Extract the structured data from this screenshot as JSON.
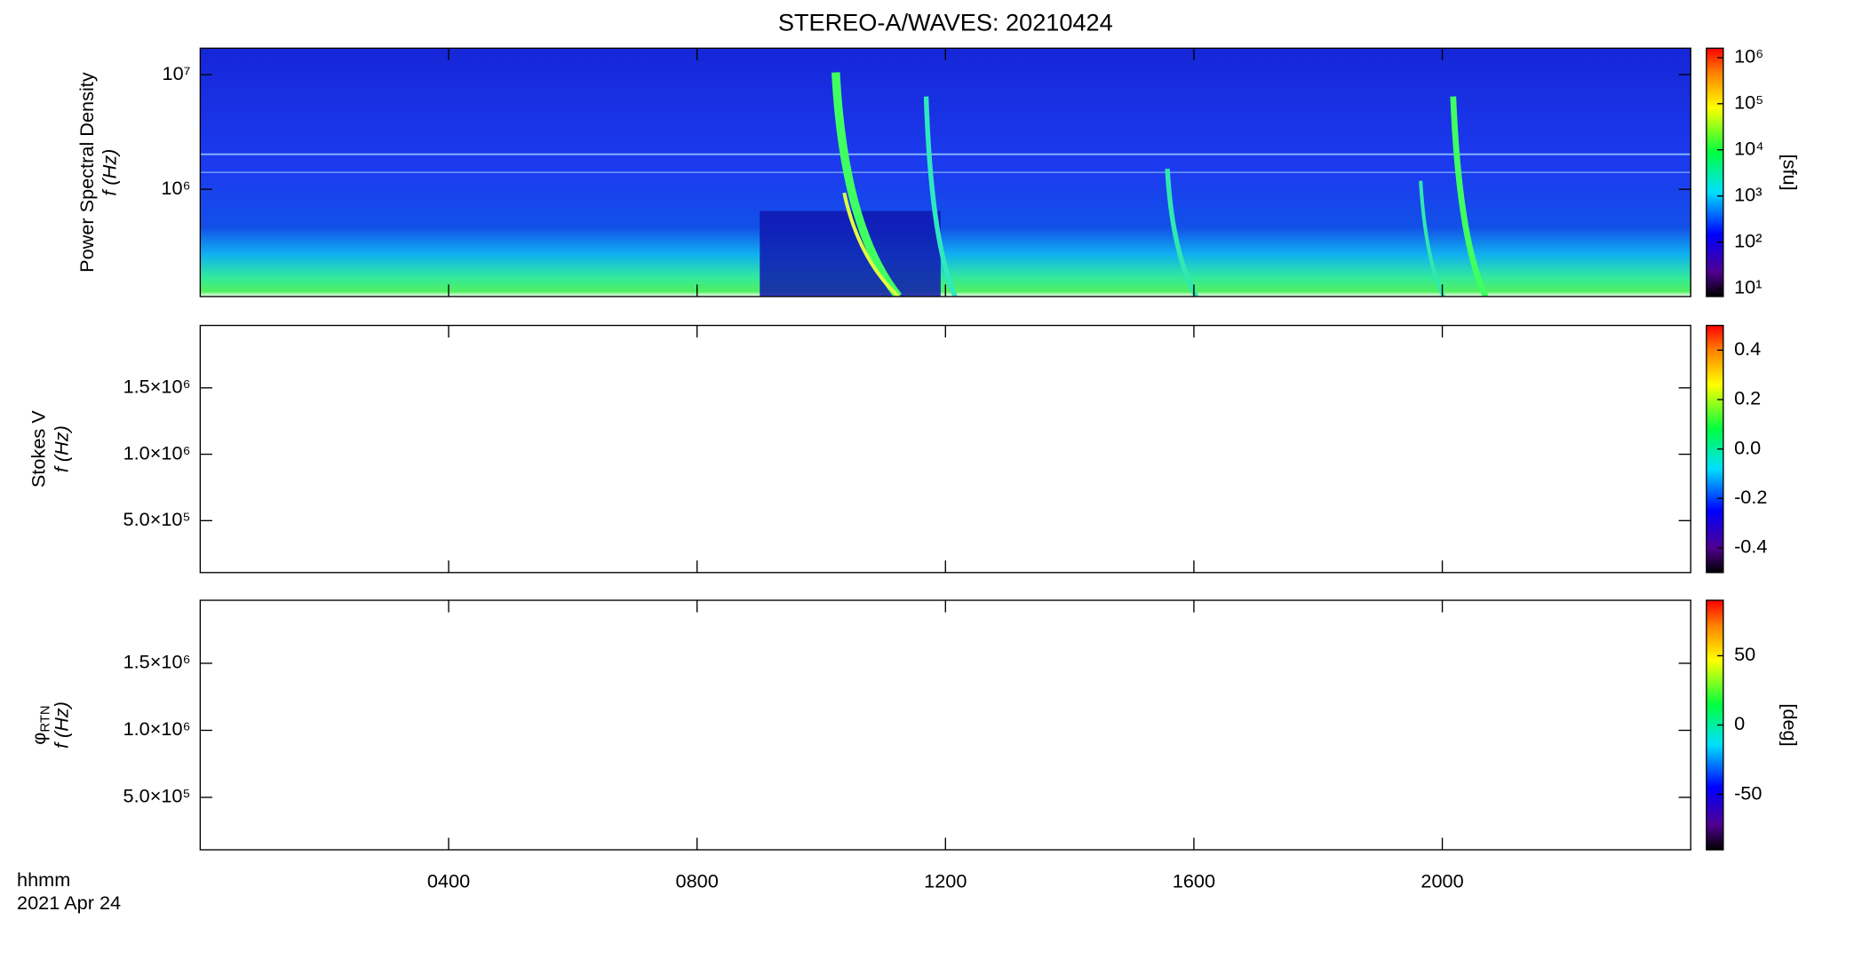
{
  "chart_data": [
    {
      "type": "spectrogram",
      "title": "STEREO-A/WAVES: 20210424",
      "ylabel": "Power Spectral Density",
      "ylabel2": "f (Hz)",
      "ylog": true,
      "ylim": [
        116000,
        17000000
      ],
      "yticks": [
        {
          "value": 1000000,
          "label": "10⁶"
        },
        {
          "value": 10000000,
          "label": "10⁷"
        }
      ],
      "zlog": true,
      "zlim": [
        6.6,
        1600000
      ],
      "zlabel": "[sfu]",
      "zticks": [
        {
          "value": 10,
          "label": "10¹"
        },
        {
          "value": 100,
          "label": "10²"
        },
        {
          "value": 1000,
          "label": "10³"
        },
        {
          "value": 10000,
          "label": "10⁴"
        },
        {
          "value": 100000,
          "label": "10⁵"
        },
        {
          "value": 1000000,
          "label": "10⁶"
        }
      ]
    },
    {
      "type": "spectrogram",
      "ylabel": "Stokes V",
      "ylabel2": "f (Hz)",
      "ylog": false,
      "ylim": [
        109000,
        1970000
      ],
      "yticks": [
        {
          "value": 500000,
          "label": "5.0×10⁵"
        },
        {
          "value": 1000000,
          "label": "1.0×10⁶"
        },
        {
          "value": 1500000,
          "label": "1.5×10⁶"
        }
      ],
      "zlog": false,
      "zlim": [
        -0.5,
        0.5
      ],
      "zticks": [
        -0.4,
        -0.2,
        {
          "value": 0,
          "label": "0.0"
        },
        0.2,
        0.4
      ]
    },
    {
      "type": "spectrogram",
      "ylabel": "φ",
      "ylabel_sub": "RTN",
      "ylabel2": "f (Hz)",
      "ylog": false,
      "ylim": [
        109000,
        1970000
      ],
      "yticks": [
        {
          "value": 500000,
          "label": "5.0×10⁵"
        },
        {
          "value": 1000000,
          "label": "1.0×10⁶"
        },
        {
          "value": 1500000,
          "label": "1.5×10⁶"
        }
      ],
      "zlog": false,
      "zlim": [
        -90,
        90
      ],
      "zlabel": "[deg]",
      "zticks": [
        -50,
        0,
        50
      ],
      "x_label": "hhmm",
      "date_label": "2021 Apr 24",
      "xlim": [
        0,
        24
      ],
      "xticks": [
        {
          "value": 4,
          "label": "0400"
        },
        {
          "value": 8,
          "label": "0800"
        },
        {
          "value": 12,
          "label": "1200"
        },
        {
          "value": 16,
          "label": "1600"
        },
        {
          "value": 20,
          "label": "2000"
        }
      ]
    }
  ]
}
